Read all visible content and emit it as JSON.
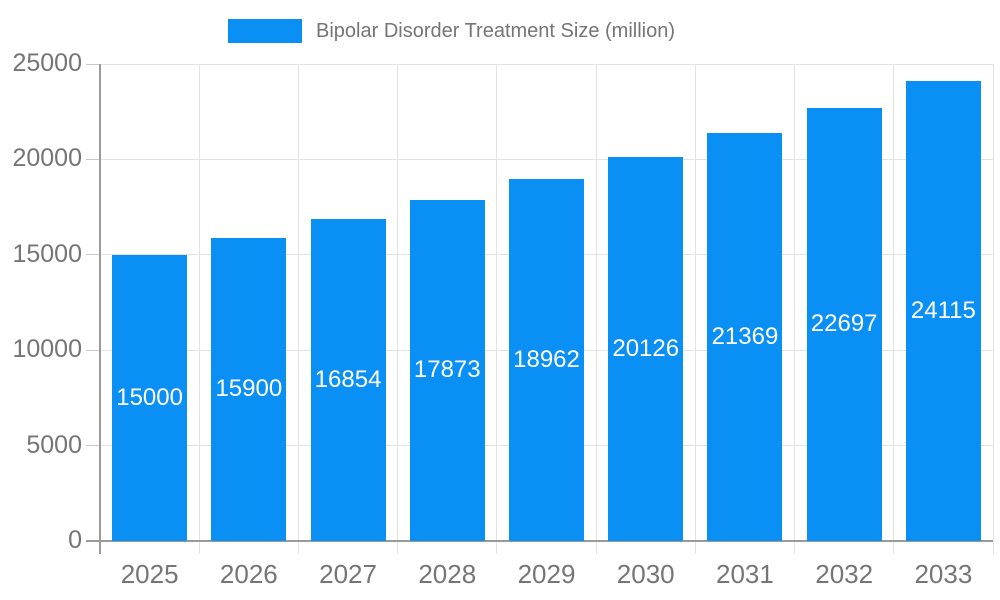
{
  "legend": {
    "items": [
      {
        "label": "Bipolar Disorder Treatment Size (million)",
        "color": "#0a8ff5"
      }
    ]
  },
  "chart_data": {
    "type": "bar",
    "title": "",
    "xlabel": "",
    "ylabel": "",
    "categories": [
      "2025",
      "2026",
      "2027",
      "2028",
      "2029",
      "2030",
      "2031",
      "2032",
      "2033"
    ],
    "series": [
      {
        "name": "Bipolar Disorder Treatment Size (million)",
        "values": [
          15000,
          15900,
          16854,
          17873,
          18962,
          20126,
          21369,
          22697,
          24115
        ],
        "color": "#0a8ff5"
      }
    ],
    "value_labels": [
      "15000",
      "15900",
      "16854",
      "17873",
      "18962",
      "20126",
      "21369",
      "22697",
      "24115"
    ],
    "ylim": [
      0,
      25000
    ],
    "y_ticks": [
      0,
      5000,
      10000,
      15000,
      20000,
      25000
    ],
    "grid": true,
    "legend_position": "top",
    "value_label_position": "inside-center",
    "value_label_color": "#ffffff"
  },
  "colors": {
    "bar": "#0a8ff5",
    "gridline": "#e3e3e3",
    "tick": "#c9c9c9",
    "axis_line": "#9a9a9a",
    "axis_text": "#757575",
    "value_text": "#ffffff",
    "background": "#ffffff"
  }
}
